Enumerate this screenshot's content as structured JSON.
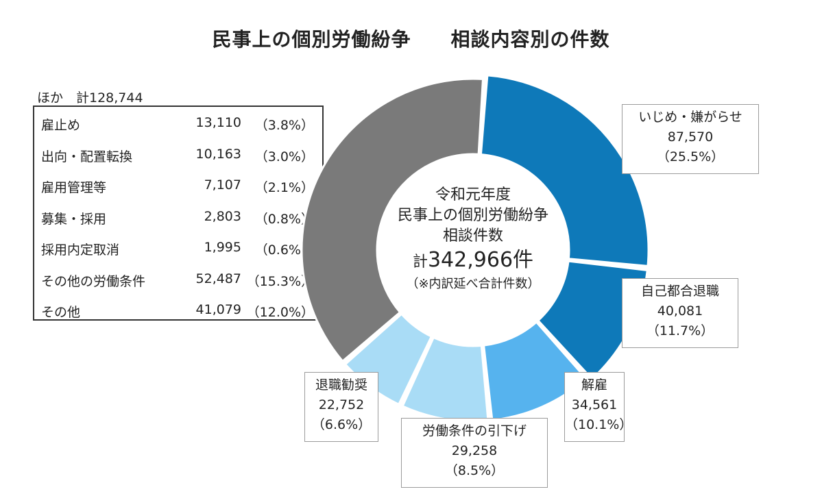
{
  "title_part1": "民事上の個別労働紛争",
  "title_part2": "相談内容別の件数",
  "center": {
    "line1": "令和元年度",
    "line2": "民事上の個別労働紛争",
    "line3": "相談件数",
    "total_prefix": "計",
    "total_value": "342,966件",
    "note": "（※内訳延べ合計件数）"
  },
  "others": {
    "header": "ほか　計128,744",
    "rows": [
      {
        "label": "雇止め",
        "value": "13,110",
        "pct": "（3.8%）"
      },
      {
        "label": "出向・配置転換",
        "value": "10,163",
        "pct": "（3.0%）"
      },
      {
        "label": "雇用管理等",
        "value": "7,107",
        "pct": "（2.1%）"
      },
      {
        "label": "募集・採用",
        "value": "2,803",
        "pct": "（0.8%）"
      },
      {
        "label": "採用内定取消",
        "value": "1,995",
        "pct": "（0.6%）"
      },
      {
        "label": "その他の労働条件",
        "value": "52,487",
        "pct": "（15.3%）"
      },
      {
        "label": "その他",
        "value": "41,079",
        "pct": "（12.0%）"
      }
    ]
  },
  "chart_data": {
    "type": "pie",
    "style": "donut",
    "total": 342966,
    "slices": [
      {
        "label": "いじめ・嫌がらせ",
        "value": 87570,
        "value_text": "87,570",
        "percent": 25.5,
        "percent_text": "（25.5%）",
        "color": "#0e79b9"
      },
      {
        "label": "自己都合退職",
        "value": 40081,
        "value_text": "40,081",
        "percent": 11.7,
        "percent_text": "（11.7%）",
        "color": "#0e79b9"
      },
      {
        "label": "解雇",
        "value": 34561,
        "value_text": "34,561",
        "percent": 10.1,
        "percent_text": "（10.1%）",
        "color": "#56b3ee"
      },
      {
        "label": "労働条件の引下げ",
        "value": 29258,
        "value_text": "29,258",
        "percent": 8.5,
        "percent_text": "（8.5%）",
        "color": "#a9dcf6"
      },
      {
        "label": "退職勧奨",
        "value": 22752,
        "value_text": "22,752",
        "percent": 6.6,
        "percent_text": "（6.6%）",
        "color": "#a9dcf6"
      },
      {
        "label": "ほか",
        "value": 128744,
        "value_text": "128,744",
        "percent": 37.6,
        "percent_text": "",
        "color": "#7a7a7a"
      }
    ]
  }
}
